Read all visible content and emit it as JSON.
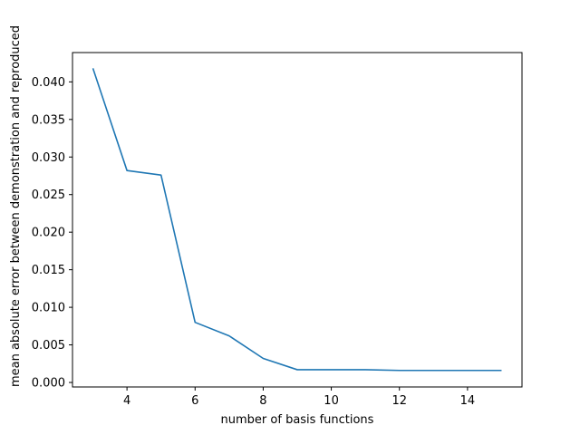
{
  "chart_data": {
    "type": "line",
    "xlabel": "number of basis functions",
    "ylabel": "mean absolute error between demonstration and reproduced",
    "xlim": [
      2.4,
      15.6
    ],
    "ylim": [
      -0.0006,
      0.0439
    ],
    "xticks": [
      4,
      6,
      8,
      10,
      12,
      14
    ],
    "xtick_labels": [
      "4",
      "6",
      "8",
      "10",
      "12",
      "14"
    ],
    "yticks": [
      0.0,
      0.005,
      0.01,
      0.015,
      0.02,
      0.025,
      0.03,
      0.035,
      0.04
    ],
    "ytick_labels": [
      "0.000",
      "0.005",
      "0.010",
      "0.015",
      "0.020",
      "0.025",
      "0.030",
      "0.035",
      "0.040"
    ],
    "grid": false,
    "series": [
      {
        "color": "#1f77b4",
        "x": [
          3,
          4,
          5,
          6,
          7,
          8,
          9,
          10,
          11,
          12,
          13,
          14,
          15
        ],
        "y": [
          0.0418,
          0.0282,
          0.0276,
          0.008,
          0.0062,
          0.0032,
          0.0017,
          0.0017,
          0.0017,
          0.0016,
          0.0016,
          0.0016,
          0.0016
        ]
      }
    ]
  }
}
